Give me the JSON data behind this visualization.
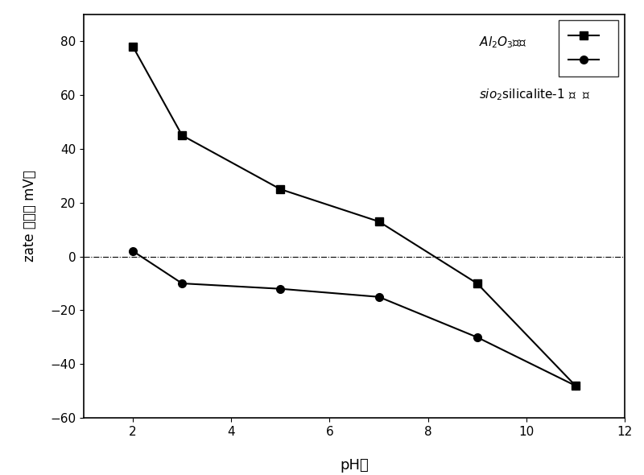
{
  "al2o3_x": [
    2,
    3,
    5,
    7,
    9,
    11
  ],
  "al2o3_y": [
    78,
    45,
    25,
    13,
    -10,
    -48
  ],
  "sio2_x": [
    2,
    3,
    5,
    7,
    9,
    11
  ],
  "sio2_y": [
    2,
    -10,
    -12,
    -15,
    -30,
    -48
  ],
  "xlabel": "pH值",
  "ylabel_line1": "zate 电位",
  "ylabel_line2": "（mV）",
  "xlim": [
    1,
    12
  ],
  "ylim": [
    -60,
    90
  ],
  "xticks": [
    2,
    4,
    6,
    8,
    10,
    12
  ],
  "yticks": [
    -60,
    -40,
    -20,
    0,
    20,
    40,
    60,
    80
  ],
  "line_color": "#000000",
  "hline_y": 0,
  "figsize": [
    8.0,
    5.9
  ],
  "dpi": 100
}
